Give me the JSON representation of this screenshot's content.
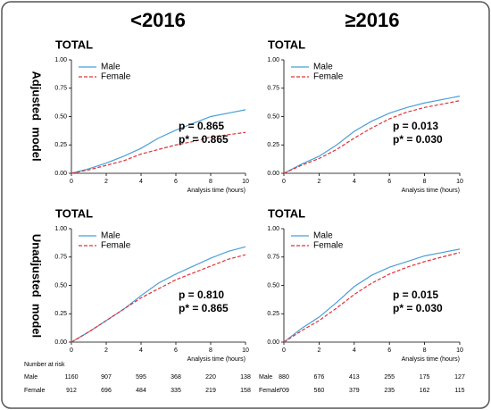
{
  "column_titles": [
    "<2016",
    "≥2016"
  ],
  "row_labels": [
    "Adjusted  model",
    "Unadjusted  model"
  ],
  "chart_data": [
    {
      "type": "line",
      "title": "TOTAL",
      "x_label": "Analysis time (hours)",
      "x": [
        0,
        1,
        2,
        3,
        4,
        5,
        6,
        7,
        8,
        9,
        10
      ],
      "series": [
        {
          "name": "Male",
          "color": "#4a9fd8",
          "line_style": "solid",
          "values": [
            0,
            0.04,
            0.09,
            0.15,
            0.22,
            0.31,
            0.38,
            0.44,
            0.5,
            0.53,
            0.56
          ]
        },
        {
          "name": "Female",
          "color": "#e0303a",
          "line_style": "dashed",
          "values": [
            0,
            0.03,
            0.07,
            0.11,
            0.17,
            0.21,
            0.25,
            0.28,
            0.32,
            0.34,
            0.36
          ]
        }
      ],
      "xlim": [
        0,
        10
      ],
      "xticks": [
        0,
        2,
        4,
        6,
        8,
        10
      ],
      "ylim": [
        0,
        1
      ],
      "yticks": [
        {
          "value": 0,
          "label": "0.00"
        },
        {
          "value": 0.25,
          "label": "0.25"
        },
        {
          "value": 0.5,
          "label": "0.50"
        },
        {
          "value": 0.75,
          "label": "0.75"
        },
        {
          "value": 1,
          "label": "1.00"
        }
      ],
      "annotations": [
        "p   = 0.865",
        "p* = 0.865"
      ]
    },
    {
      "type": "line",
      "title": "TOTAL",
      "x_label": "Analysis time (hours)",
      "x": [
        0,
        1,
        2,
        3,
        4,
        5,
        6,
        7,
        8,
        9,
        10
      ],
      "series": [
        {
          "name": "Male",
          "color": "#4a9fd8",
          "line_style": "solid",
          "values": [
            0,
            0.08,
            0.15,
            0.25,
            0.37,
            0.46,
            0.53,
            0.58,
            0.62,
            0.65,
            0.68
          ]
        },
        {
          "name": "Female",
          "color": "#e0303a",
          "line_style": "dashed",
          "values": [
            0,
            0.07,
            0.13,
            0.21,
            0.31,
            0.4,
            0.48,
            0.54,
            0.58,
            0.61,
            0.64
          ]
        }
      ],
      "xlim": [
        0,
        10
      ],
      "xticks": [
        0,
        2,
        4,
        6,
        8,
        10
      ],
      "ylim": [
        0,
        1
      ],
      "yticks": [
        {
          "value": 0,
          "label": "0.00"
        },
        {
          "value": 0.25,
          "label": "0.25"
        },
        {
          "value": 0.5,
          "label": "0.50"
        },
        {
          "value": 0.75,
          "label": "0.75"
        },
        {
          "value": 1,
          "label": "1.00"
        }
      ],
      "annotations": [
        "p   = 0.013",
        "p* = 0.030"
      ]
    },
    {
      "type": "line",
      "title": "TOTAL",
      "x_label": "Analysis time (hours)",
      "x": [
        0,
        1,
        2,
        3,
        4,
        5,
        6,
        7,
        8,
        9,
        10
      ],
      "series": [
        {
          "name": "Male",
          "color": "#4a9fd8",
          "line_style": "solid",
          "values": [
            0,
            0.09,
            0.19,
            0.29,
            0.41,
            0.52,
            0.6,
            0.67,
            0.74,
            0.8,
            0.84
          ]
        },
        {
          "name": "Female",
          "color": "#e0303a",
          "line_style": "dashed",
          "values": [
            0,
            0.09,
            0.19,
            0.29,
            0.39,
            0.47,
            0.55,
            0.61,
            0.67,
            0.73,
            0.77
          ]
        }
      ],
      "xlim": [
        0,
        10
      ],
      "xticks": [
        0,
        2,
        4,
        6,
        8,
        10
      ],
      "ylim": [
        0,
        1
      ],
      "yticks": [
        {
          "value": 0,
          "label": "0.00"
        },
        {
          "value": 0.25,
          "label": "0.25"
        },
        {
          "value": 0.5,
          "label": "0.50"
        },
        {
          "value": 0.75,
          "label": "0.75"
        },
        {
          "value": 1,
          "label": "1.00"
        }
      ],
      "annotations": [
        "p   = 0.810",
        "p* = 0.865"
      ]
    },
    {
      "type": "line",
      "title": "TOTAL",
      "x_label": "Analysis time (hours)",
      "x": [
        0,
        1,
        2,
        3,
        4,
        5,
        6,
        7,
        8,
        9,
        10
      ],
      "series": [
        {
          "name": "Male",
          "color": "#4a9fd8",
          "line_style": "solid",
          "values": [
            0,
            0.12,
            0.22,
            0.35,
            0.49,
            0.59,
            0.66,
            0.71,
            0.76,
            0.79,
            0.82
          ]
        },
        {
          "name": "Female",
          "color": "#e0303a",
          "line_style": "dashed",
          "values": [
            0,
            0.1,
            0.19,
            0.3,
            0.42,
            0.52,
            0.6,
            0.66,
            0.71,
            0.75,
            0.79
          ]
        }
      ],
      "xlim": [
        0,
        10
      ],
      "xticks": [
        0,
        2,
        4,
        6,
        8,
        10
      ],
      "ylim": [
        0,
        1
      ],
      "yticks": [
        {
          "value": 0,
          "label": "0.00"
        },
        {
          "value": 0.25,
          "label": "0.25"
        },
        {
          "value": 0.5,
          "label": "0.50"
        },
        {
          "value": 0.75,
          "label": "0.75"
        },
        {
          "value": 1,
          "label": "1.00"
        }
      ],
      "annotations": [
        "p   = 0.015",
        "p* = 0.030"
      ]
    }
  ],
  "risk_tables": [
    {
      "title": "Number at risk",
      "rows": [
        {
          "name": "Male",
          "values": [
            1160,
            907,
            595,
            368,
            220,
            138
          ]
        },
        {
          "name": "Female",
          "values": [
            912,
            696,
            484,
            335,
            219,
            158
          ]
        }
      ]
    },
    {
      "rows": [
        {
          "name": "Male",
          "values": [
            880,
            676,
            413,
            255,
            175,
            127
          ]
        },
        {
          "name": "Female",
          "values": [
            709,
            560,
            379,
            235,
            162,
            115
          ]
        }
      ]
    }
  ]
}
